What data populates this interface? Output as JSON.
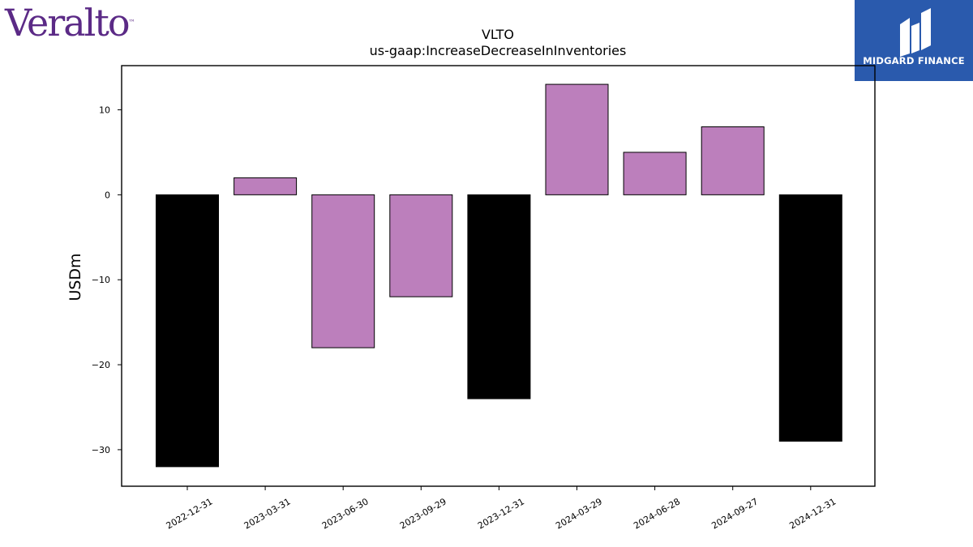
{
  "brand": {
    "company_logo": "Veralto",
    "company_logo_mark": "™",
    "partner_logo": "MIDGARD FINANCE"
  },
  "colors": {
    "positive_bar": "#bc7fbc",
    "annual_bar": "#000000",
    "brand_purple": "#5b2a86",
    "partner_blue": "#2a5aad"
  },
  "chart_data": {
    "type": "bar",
    "title": "VLTO",
    "subtitle": "us-gaap:IncreaseDecreaseInInventories",
    "xlabel": "",
    "ylabel": "USDm",
    "categories": [
      "2022-12-31",
      "2023-03-31",
      "2023-06-30",
      "2023-09-29",
      "2023-12-31",
      "2024-03-29",
      "2024-06-28",
      "2024-09-27",
      "2024-12-31"
    ],
    "values": [
      -32,
      2,
      -18,
      -12,
      -24,
      13,
      5,
      8,
      -29
    ],
    "bar_colors": [
      "#000000",
      "#bc7fbc",
      "#bc7fbc",
      "#bc7fbc",
      "#000000",
      "#bc7fbc",
      "#bc7fbc",
      "#bc7fbc",
      "#000000"
    ],
    "ylim": [
      -34.3,
      15.2
    ],
    "yticks": [
      10,
      0,
      -10,
      -20,
      -30
    ],
    "ytick_labels": [
      "10",
      "0",
      "−10",
      "−20",
      "−30"
    ],
    "grid": false,
    "legend": "none"
  }
}
